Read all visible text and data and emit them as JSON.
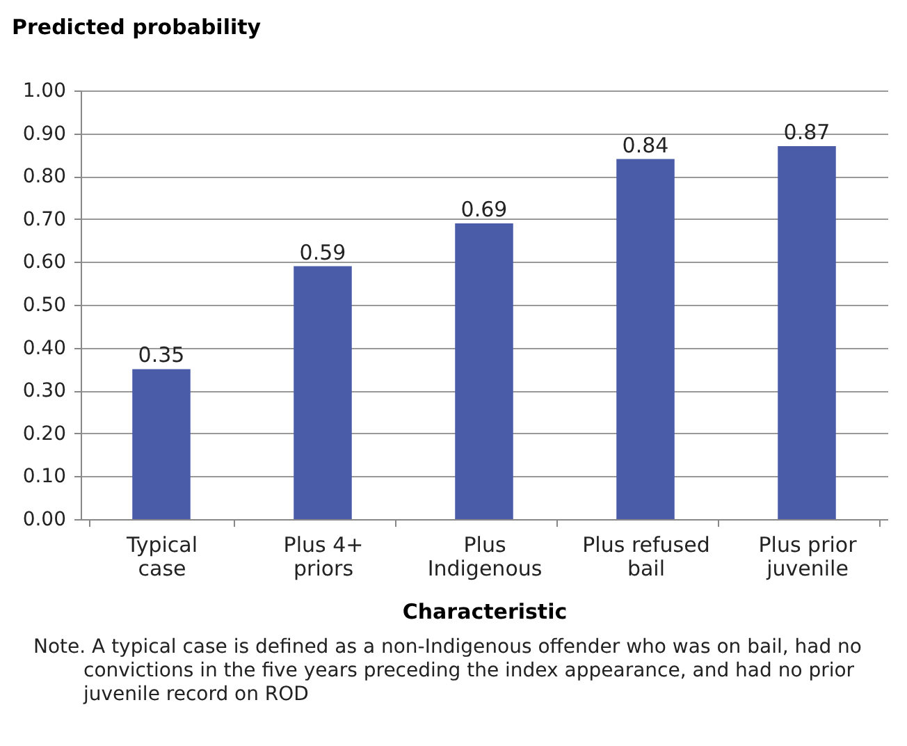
{
  "chart_data": {
    "type": "bar",
    "ylabel": "Predicted probability",
    "xlabel": "Characteristic",
    "categories": [
      "Typical case",
      "Plus 4+ priors",
      "Plus Indigenous",
      "Plus refused bail",
      "Plus prior juvenile"
    ],
    "values": [
      0.35,
      0.59,
      0.69,
      0.84,
      0.87
    ],
    "color": "#4a5ba8",
    "data_labels": true,
    "ylim": [
      0,
      1
    ],
    "yticks": [
      {
        "value": 0,
        "label": "0.00"
      },
      {
        "value": 0.1,
        "label": "0.10"
      },
      {
        "value": 0.2,
        "label": "0.20"
      },
      {
        "value": 0.3,
        "label": "0.30"
      },
      {
        "value": 0.4,
        "label": "0.40"
      },
      {
        "value": 0.5,
        "label": "0.50"
      },
      {
        "value": 0.6,
        "label": "0.60"
      },
      {
        "value": 0.7,
        "label": "0.70"
      },
      {
        "value": 0.8,
        "label": "0.80"
      },
      {
        "value": 0.9,
        "label": "0.90"
      },
      {
        "value": 1,
        "label": "1.00"
      }
    ],
    "grid": "y",
    "annotations": [
      "Note. A typical case is defined as a non-Indigenous offender who was on bail, had no convictions in the five years preceding the index appearance, and had no prior juvenile record on ROD"
    ]
  }
}
